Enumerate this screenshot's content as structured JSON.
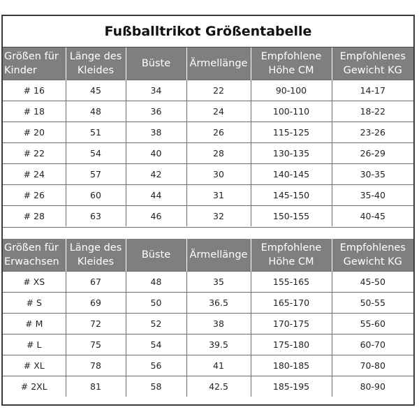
{
  "title": "Fußballtrikot Größentabelle",
  "kids": {
    "headers": [
      "Größen für Kinder",
      "Länge des Kleides",
      "Büste",
      "Ärmellänge",
      "Empfohlene Höhe CM",
      "Empfohlenes Gewicht KG"
    ],
    "rows": [
      [
        "# 16",
        "45",
        "34",
        "22",
        "90-100",
        "14-17"
      ],
      [
        "# 18",
        "48",
        "36",
        "24",
        "100-110",
        "18-22"
      ],
      [
        "# 20",
        "51",
        "38",
        "26",
        "115-125",
        "23-26"
      ],
      [
        "# 22",
        "54",
        "40",
        "28",
        "130-135",
        "26-29"
      ],
      [
        "# 24",
        "57",
        "42",
        "30",
        "140-145",
        "30-35"
      ],
      [
        "# 26",
        "60",
        "44",
        "31",
        "145-150",
        "35-40"
      ],
      [
        "# 28",
        "63",
        "46",
        "32",
        "150-155",
        "40-45"
      ]
    ]
  },
  "adults": {
    "headers": [
      "Größen für Erwachsen",
      "Länge des Kleides",
      "Büste",
      "Ärmellänge",
      "Empfohlene Höhe CM",
      "Empfohlenes Gewicht KG"
    ],
    "rows": [
      [
        "# XS",
        "67",
        "48",
        "35",
        "155-165",
        "45-50"
      ],
      [
        "# S",
        "69",
        "50",
        "36.5",
        "165-170",
        "50-55"
      ],
      [
        "# M",
        "72",
        "52",
        "38",
        "170-175",
        "55-60"
      ],
      [
        "# L",
        "75",
        "54",
        "39.5",
        "175-180",
        "60-70"
      ],
      [
        "# XL",
        "78",
        "56",
        "41",
        "180-185",
        "70-80"
      ],
      [
        "# 2XL",
        "81",
        "58",
        "42.5",
        "185-195",
        "80-90"
      ]
    ]
  },
  "colors": {
    "header_bg": "#7f7f7f",
    "header_text": "#ffffff",
    "border": "#6a6a6a"
  }
}
